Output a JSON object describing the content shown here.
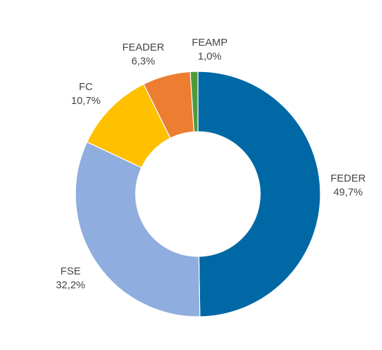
{
  "chart_data": {
    "type": "pie",
    "variant": "donut",
    "categories": [
      "FEDER",
      "FSE",
      "FC",
      "FEADER",
      "FEAMP"
    ],
    "values": [
      49.7,
      32.2,
      10.7,
      6.3,
      1.0
    ],
    "value_labels": [
      "49,7%",
      "32,2%",
      "10,7%",
      "6,3%",
      "1,0%"
    ],
    "colors": [
      "#0068a5",
      "#8fadde",
      "#ffc000",
      "#ed7d31",
      "#4e9a3b"
    ],
    "start": "12 o'clock",
    "direction": "clockwise",
    "legend": "none"
  }
}
